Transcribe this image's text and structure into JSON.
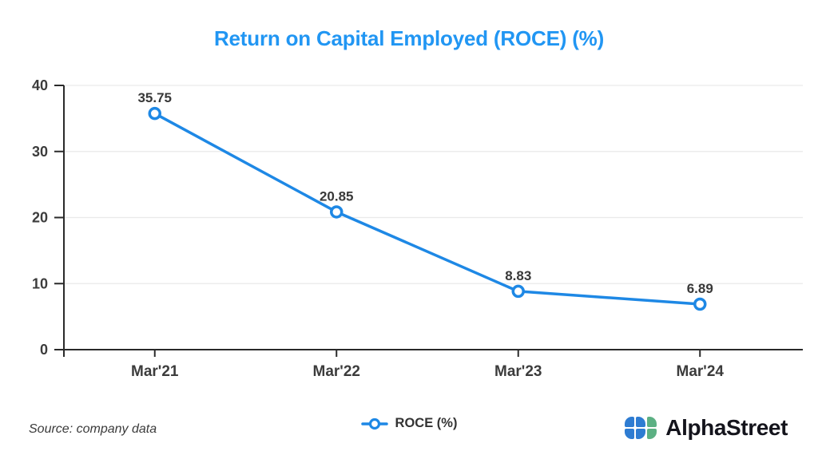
{
  "title": "Return on Capital Employed (ROCE) (%)",
  "source_note": "Source: company data",
  "legend": {
    "label": "ROCE (%)"
  },
  "brand": {
    "name": "AlphaStreet"
  },
  "colors": {
    "title": "#2196f3",
    "line": "#1e88e5",
    "marker_fill": "#ffffff",
    "grid": "#e9e9e9",
    "axis": "#2a2a2a",
    "tick_text": "#3c3c3c",
    "logo_blue": "#2e7cd2",
    "logo_green": "#5cb083"
  },
  "chart_data": {
    "type": "line",
    "categories": [
      "Mar'21",
      "Mar'22",
      "Mar'23",
      "Mar'24"
    ],
    "series": [
      {
        "name": "ROCE (%)",
        "values": [
          35.75,
          20.85,
          8.83,
          6.89
        ],
        "labels": [
          "35.75",
          "20.85",
          "8.83",
          "6.89"
        ]
      }
    ],
    "title": "Return on Capital Employed (ROCE) (%)",
    "xlabel": "",
    "ylabel": "",
    "ylim": [
      0,
      40
    ],
    "yticks": [
      0,
      10,
      20,
      30,
      40
    ],
    "grid": true,
    "legend_position": "bottom"
  }
}
